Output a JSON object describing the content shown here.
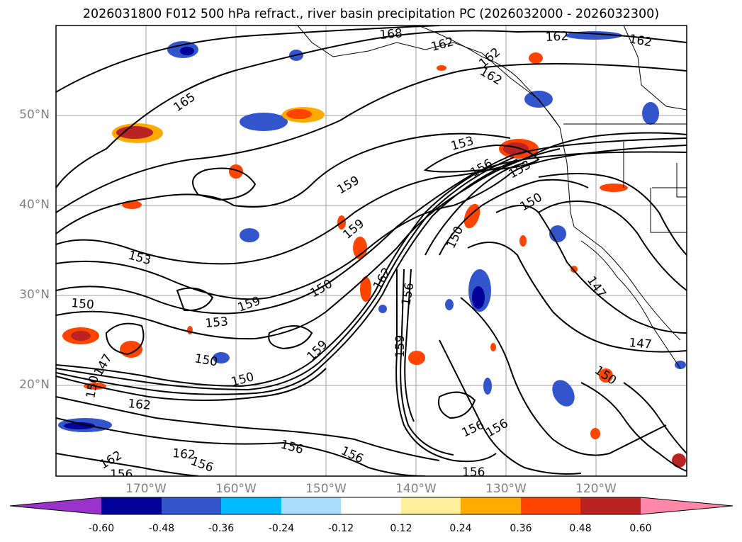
{
  "title": "2026031800 F012 500 hPa refract., river basin precipitation PC (2026032000 - 2026032300)",
  "lat_labels": [
    "50°N",
    "40°N",
    "30°N",
    "20°N"
  ],
  "lon_labels": [
    "170°W",
    "160°W",
    "150°W",
    "140°W",
    "130°W",
    "120°W"
  ],
  "contour_labels": [
    "168",
    "162",
    "162",
    "162",
    "162",
    "165",
    "153",
    "159",
    "159",
    "156",
    "153",
    "150",
    "153",
    "150",
    "159",
    "162",
    "150",
    "150",
    "156",
    "159",
    "153",
    "159",
    "150",
    "150",
    "147",
    "150",
    "162",
    "162",
    "156",
    "156",
    "162",
    "156",
    "156",
    "156",
    "156",
    "147",
    "147",
    "156",
    "150",
    "162"
  ],
  "colorbar": {
    "ticks": [
      "-0.60",
      "-0.48",
      "-0.36",
      "-0.24",
      "-0.12",
      "0.12",
      "0.24",
      "0.36",
      "0.48",
      "0.60"
    ],
    "colors": [
      "#9933cc",
      "#000099",
      "#3355cc",
      "#00bbff",
      "#aaddff",
      "#ffffff",
      "#ffee99",
      "#ffaa00",
      "#ff4400",
      "#bb2222",
      "#ff88aa"
    ]
  }
}
